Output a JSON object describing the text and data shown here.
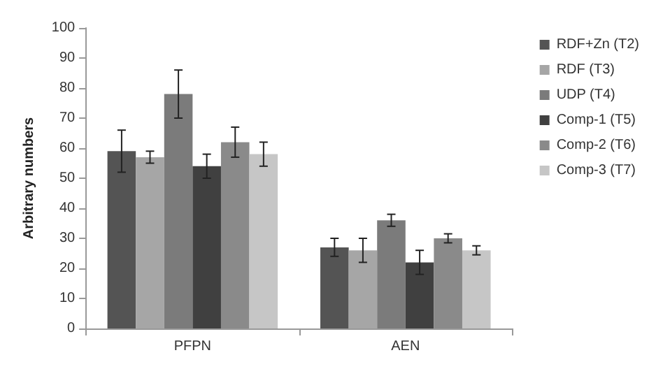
{
  "chart_data": {
    "type": "bar",
    "ylabel": "Arbitrary numbers",
    "categories": [
      "PFPN",
      "AEN"
    ],
    "series": [
      {
        "name": "RDF+Zn (T2)",
        "color": "#545454",
        "values": [
          59,
          27
        ],
        "errors": [
          7,
          3
        ]
      },
      {
        "name": "RDF (T3)",
        "color": "#a6a6a6",
        "values": [
          57,
          26
        ],
        "errors": [
          2,
          4
        ]
      },
      {
        "name": "UDP (T4)",
        "color": "#7b7b7b",
        "values": [
          78,
          36
        ],
        "errors": [
          8,
          2
        ]
      },
      {
        "name": "Comp-1 (T5)",
        "color": "#404040",
        "values": [
          54,
          22
        ],
        "errors": [
          4,
          4
        ]
      },
      {
        "name": "Comp-2 (T6)",
        "color": "#8a8a8a",
        "values": [
          62,
          30
        ],
        "errors": [
          5,
          1.5
        ]
      },
      {
        "name": "Comp-3 (T7)",
        "color": "#c6c6c6",
        "values": [
          58,
          26
        ],
        "errors": [
          4,
          1.5
        ]
      }
    ],
    "ylim": [
      0,
      100
    ],
    "yticks": [
      0,
      10,
      20,
      30,
      40,
      50,
      60,
      70,
      80,
      90,
      100
    ],
    "grid": false,
    "legend": "right"
  }
}
